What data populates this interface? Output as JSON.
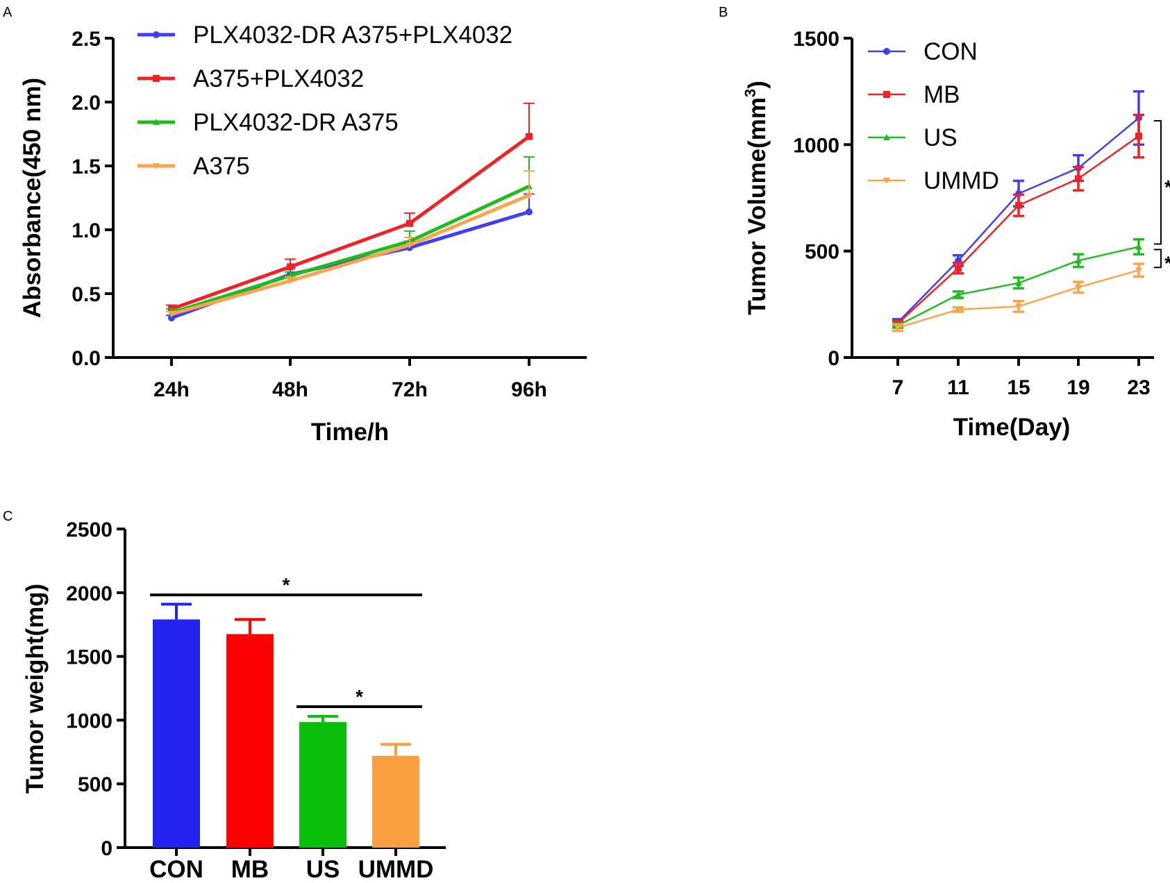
{
  "chart_data": [
    {
      "panel": "A",
      "type": "line",
      "xlabel": "Time/h",
      "ylabel": "Absorbance(450 nm)",
      "categories": [
        "24h",
        "48h",
        "72h",
        "96h"
      ],
      "ylim": [
        0,
        2.5
      ],
      "yticks": [
        0.0,
        0.5,
        1.0,
        1.5,
        2.0,
        2.5
      ],
      "ytick_labels": [
        "0.0",
        "0.5",
        "1.0",
        "1.5",
        "2.0",
        "2.5"
      ],
      "legend_position": "top-left",
      "series": [
        {
          "name": "PLX4032-DR A375+PLX4032",
          "color": "#3f3ff2",
          "marker": "circle",
          "values": [
            0.31,
            0.65,
            0.86,
            1.14
          ],
          "errors": [
            0.02,
            0.05,
            0.05,
            0.14
          ]
        },
        {
          "name": "A375+PLX4032",
          "color": "#ef2325",
          "marker": "square",
          "values": [
            0.38,
            0.71,
            1.05,
            1.73
          ],
          "errors": [
            0.03,
            0.06,
            0.08,
            0.26
          ]
        },
        {
          "name": "PLX4032-DR A375",
          "color": "#1fbb1f",
          "marker": "triangle-up",
          "values": [
            0.35,
            0.64,
            0.91,
            1.34
          ],
          "errors": [
            0.03,
            0.03,
            0.08,
            0.23
          ]
        },
        {
          "name": "A375",
          "color": "#f8a44b",
          "marker": "triangle-down",
          "values": [
            0.34,
            0.6,
            0.88,
            1.27
          ],
          "errors": [
            0.02,
            0.03,
            0.06,
            0.19
          ]
        }
      ]
    },
    {
      "panel": "B",
      "type": "line",
      "xlabel": "Time(Day)",
      "ylabel": "Tumor Volume(mm",
      "ylabel_superscript": "3",
      "ylabel_close": ")",
      "categories": [
        "7",
        "11",
        "15",
        "19",
        "23"
      ],
      "ylim": [
        0,
        1500
      ],
      "yticks": [
        0,
        500,
        1000,
        1500
      ],
      "ytick_labels": [
        "0",
        "500",
        "1000",
        "1500"
      ],
      "legend_position": "top-left",
      "series": [
        {
          "name": "CON",
          "color": "#3f3ff2",
          "marker": "circle",
          "values": [
            165,
            455,
            770,
            890,
            1125
          ],
          "errors": [
            15,
            25,
            60,
            60,
            125
          ]
        },
        {
          "name": "MB",
          "color": "#ef2325",
          "marker": "square",
          "values": [
            160,
            420,
            715,
            840,
            1040
          ],
          "errors": [
            12,
            25,
            50,
            55,
            100
          ]
        },
        {
          "name": "US",
          "color": "#1fbb1f",
          "marker": "triangle-up",
          "values": [
            150,
            295,
            350,
            455,
            520
          ],
          "errors": [
            10,
            15,
            25,
            30,
            35
          ]
        },
        {
          "name": "UMMD",
          "color": "#f8a44b",
          "marker": "triangle-down",
          "values": [
            140,
            225,
            240,
            330,
            410
          ],
          "errors": [
            15,
            10,
            25,
            25,
            30
          ]
        }
      ],
      "annotations": [
        {
          "text": "*",
          "from": 1125,
          "to": 520
        },
        {
          "text": "*",
          "from": 520,
          "to": 410
        }
      ]
    },
    {
      "panel": "C",
      "type": "bar",
      "xlabel": "",
      "ylabel": "Tumor weight(mg)",
      "categories": [
        "CON",
        "MB",
        "US",
        "UMMD"
      ],
      "values": [
        1790,
        1675,
        985,
        720
      ],
      "errors": [
        120,
        115,
        45,
        90
      ],
      "colors": [
        "#2323f0",
        "#ff0000",
        "#09c009",
        "#faa040"
      ],
      "ylim": [
        0,
        2500
      ],
      "yticks": [
        0,
        500,
        1000,
        1500,
        2000,
        2500
      ],
      "ytick_labels": [
        "0",
        "500",
        "1000",
        "1500",
        "2000",
        "2500"
      ],
      "annotations": [
        {
          "text": "*",
          "from": 0,
          "to": 3
        },
        {
          "text": "*",
          "from": 2,
          "to": 3
        }
      ]
    }
  ]
}
